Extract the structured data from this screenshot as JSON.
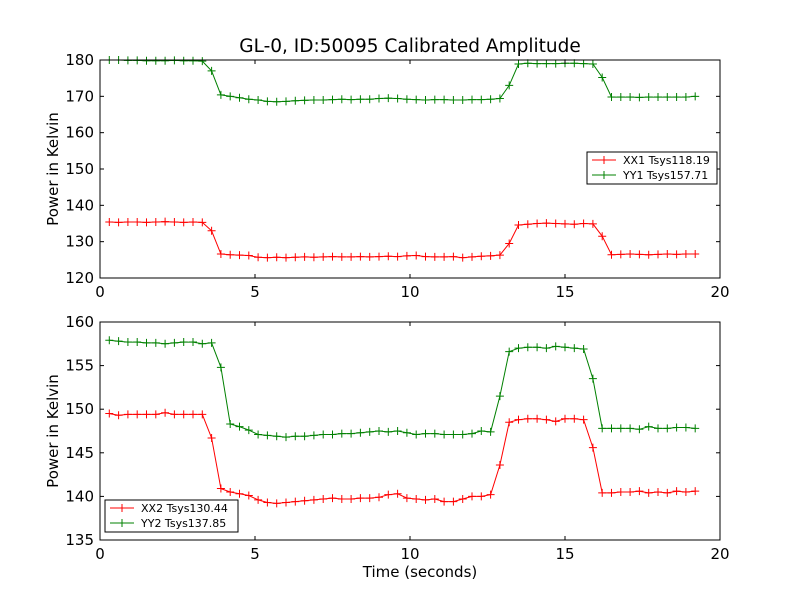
{
  "title": "GL-0, ID:50095 Calibrated Amplitude",
  "chart_data": [
    {
      "type": "line",
      "ylabel": "Power in Kelvin",
      "xlabel": "",
      "xlim": [
        0,
        20
      ],
      "ylim": [
        120,
        180
      ],
      "xticks": [
        "0",
        "5",
        "10",
        "15",
        "20"
      ],
      "yticks": [
        "120",
        "130",
        "140",
        "150",
        "160",
        "170",
        "180"
      ],
      "grid": false,
      "legend_position": "center-right",
      "x": [
        0.3,
        0.6,
        0.9,
        1.2,
        1.5,
        1.8,
        2.1,
        2.4,
        2.7,
        3.0,
        3.3,
        3.6,
        3.9,
        4.2,
        4.5,
        4.8,
        5.1,
        5.4,
        5.7,
        6.0,
        6.3,
        6.6,
        6.9,
        7.2,
        7.5,
        7.8,
        8.1,
        8.4,
        8.7,
        9.0,
        9.3,
        9.6,
        9.9,
        10.2,
        10.5,
        10.8,
        11.1,
        11.4,
        11.7,
        12.0,
        12.3,
        12.6,
        12.9,
        13.2,
        13.5,
        13.8,
        14.1,
        14.4,
        14.7,
        15.0,
        15.3,
        15.6,
        15.9,
        16.2,
        16.5,
        16.8,
        17.1,
        17.4,
        17.7,
        18.0,
        18.3,
        18.6,
        18.9,
        19.2
      ],
      "series": [
        {
          "name": "XX1 Tsys118.19",
          "color": "#ff0000",
          "values": [
            135.4,
            135.3,
            135.4,
            135.4,
            135.3,
            135.4,
            135.5,
            135.4,
            135.3,
            135.4,
            135.3,
            133.0,
            126.6,
            126.4,
            126.3,
            126.2,
            125.7,
            125.6,
            125.7,
            125.6,
            125.7,
            125.8,
            125.7,
            125.8,
            125.9,
            125.8,
            125.8,
            125.9,
            125.8,
            125.9,
            126.0,
            125.9,
            126.1,
            126.2,
            125.9,
            125.8,
            125.8,
            125.9,
            125.6,
            125.8,
            126.0,
            126.1,
            126.3,
            129.5,
            134.6,
            134.8,
            135.0,
            135.1,
            135.0,
            134.9,
            134.8,
            135.0,
            134.9,
            131.5,
            126.4,
            126.5,
            126.6,
            126.5,
            126.4,
            126.5,
            126.6,
            126.5,
            126.6,
            126.6
          ]
        },
        {
          "name": "YY1 Tsys157.71",
          "color": "#008000",
          "values": [
            180.0,
            180.0,
            179.9,
            179.9,
            179.8,
            179.8,
            179.8,
            179.9,
            179.8,
            179.8,
            179.7,
            177.0,
            170.4,
            170.0,
            169.6,
            169.2,
            169.0,
            168.6,
            168.5,
            168.6,
            168.8,
            168.9,
            169.0,
            169.0,
            169.1,
            169.2,
            169.1,
            169.2,
            169.2,
            169.4,
            169.5,
            169.4,
            169.2,
            169.1,
            169.0,
            169.1,
            169.1,
            169.0,
            169.0,
            169.1,
            169.1,
            169.2,
            169.4,
            173.0,
            178.9,
            179.1,
            179.0,
            179.0,
            179.0,
            179.1,
            179.1,
            179.0,
            178.9,
            175.2,
            169.8,
            169.8,
            169.8,
            169.7,
            169.8,
            169.8,
            169.8,
            169.8,
            169.8,
            170.0
          ]
        }
      ]
    },
    {
      "type": "line",
      "ylabel": "Power in Kelvin",
      "xlabel": "Time (seconds)",
      "xlim": [
        0,
        20
      ],
      "ylim": [
        135,
        160
      ],
      "xticks": [
        "0",
        "5",
        "10",
        "15",
        "20"
      ],
      "yticks": [
        "135",
        "140",
        "145",
        "150",
        "155",
        "160"
      ],
      "grid": false,
      "legend_position": "lower-left",
      "x": [
        0.3,
        0.6,
        0.9,
        1.2,
        1.5,
        1.8,
        2.1,
        2.4,
        2.7,
        3.0,
        3.3,
        3.6,
        3.9,
        4.2,
        4.5,
        4.8,
        5.1,
        5.4,
        5.7,
        6.0,
        6.3,
        6.6,
        6.9,
        7.2,
        7.5,
        7.8,
        8.1,
        8.4,
        8.7,
        9.0,
        9.3,
        9.6,
        9.9,
        10.2,
        10.5,
        10.8,
        11.1,
        11.4,
        11.7,
        12.0,
        12.3,
        12.6,
        12.9,
        13.2,
        13.5,
        13.8,
        14.1,
        14.4,
        14.7,
        15.0,
        15.3,
        15.6,
        15.9,
        16.2,
        16.5,
        16.8,
        17.1,
        17.4,
        17.7,
        18.0,
        18.3,
        18.6,
        18.9,
        19.2
      ],
      "series": [
        {
          "name": "XX2 Tsys130.44",
          "color": "#ff0000",
          "values": [
            149.5,
            149.3,
            149.4,
            149.4,
            149.4,
            149.4,
            149.6,
            149.4,
            149.4,
            149.4,
            149.4,
            146.7,
            140.9,
            140.5,
            140.3,
            140.1,
            139.6,
            139.3,
            139.2,
            139.3,
            139.4,
            139.5,
            139.6,
            139.7,
            139.8,
            139.7,
            139.7,
            139.8,
            139.8,
            139.9,
            140.2,
            140.3,
            139.8,
            139.7,
            139.6,
            139.7,
            139.4,
            139.4,
            139.7,
            140.0,
            140.0,
            140.2,
            143.6,
            148.5,
            148.8,
            148.9,
            148.9,
            148.8,
            148.6,
            148.9,
            148.9,
            148.8,
            145.6,
            140.4,
            140.4,
            140.5,
            140.5,
            140.6,
            140.4,
            140.5,
            140.4,
            140.6,
            140.5,
            140.6
          ]
        },
        {
          "name": "YY2 Tsys137.85",
          "color": "#008000",
          "values": [
            157.9,
            157.8,
            157.7,
            157.7,
            157.6,
            157.6,
            157.5,
            157.6,
            157.7,
            157.7,
            157.5,
            157.6,
            154.8,
            148.3,
            148.0,
            147.6,
            147.1,
            147.0,
            146.9,
            146.8,
            146.9,
            146.9,
            147.0,
            147.1,
            147.1,
            147.2,
            147.2,
            147.3,
            147.4,
            147.5,
            147.4,
            147.5,
            147.3,
            147.1,
            147.2,
            147.2,
            147.1,
            147.1,
            147.1,
            147.2,
            147.5,
            147.4,
            151.5,
            156.6,
            157.0,
            157.1,
            157.1,
            157.0,
            157.2,
            157.1,
            157.0,
            156.9,
            153.5,
            147.8,
            147.8,
            147.8,
            147.8,
            147.7,
            148.0,
            147.8,
            147.8,
            147.9,
            147.9,
            147.8
          ]
        }
      ]
    }
  ]
}
